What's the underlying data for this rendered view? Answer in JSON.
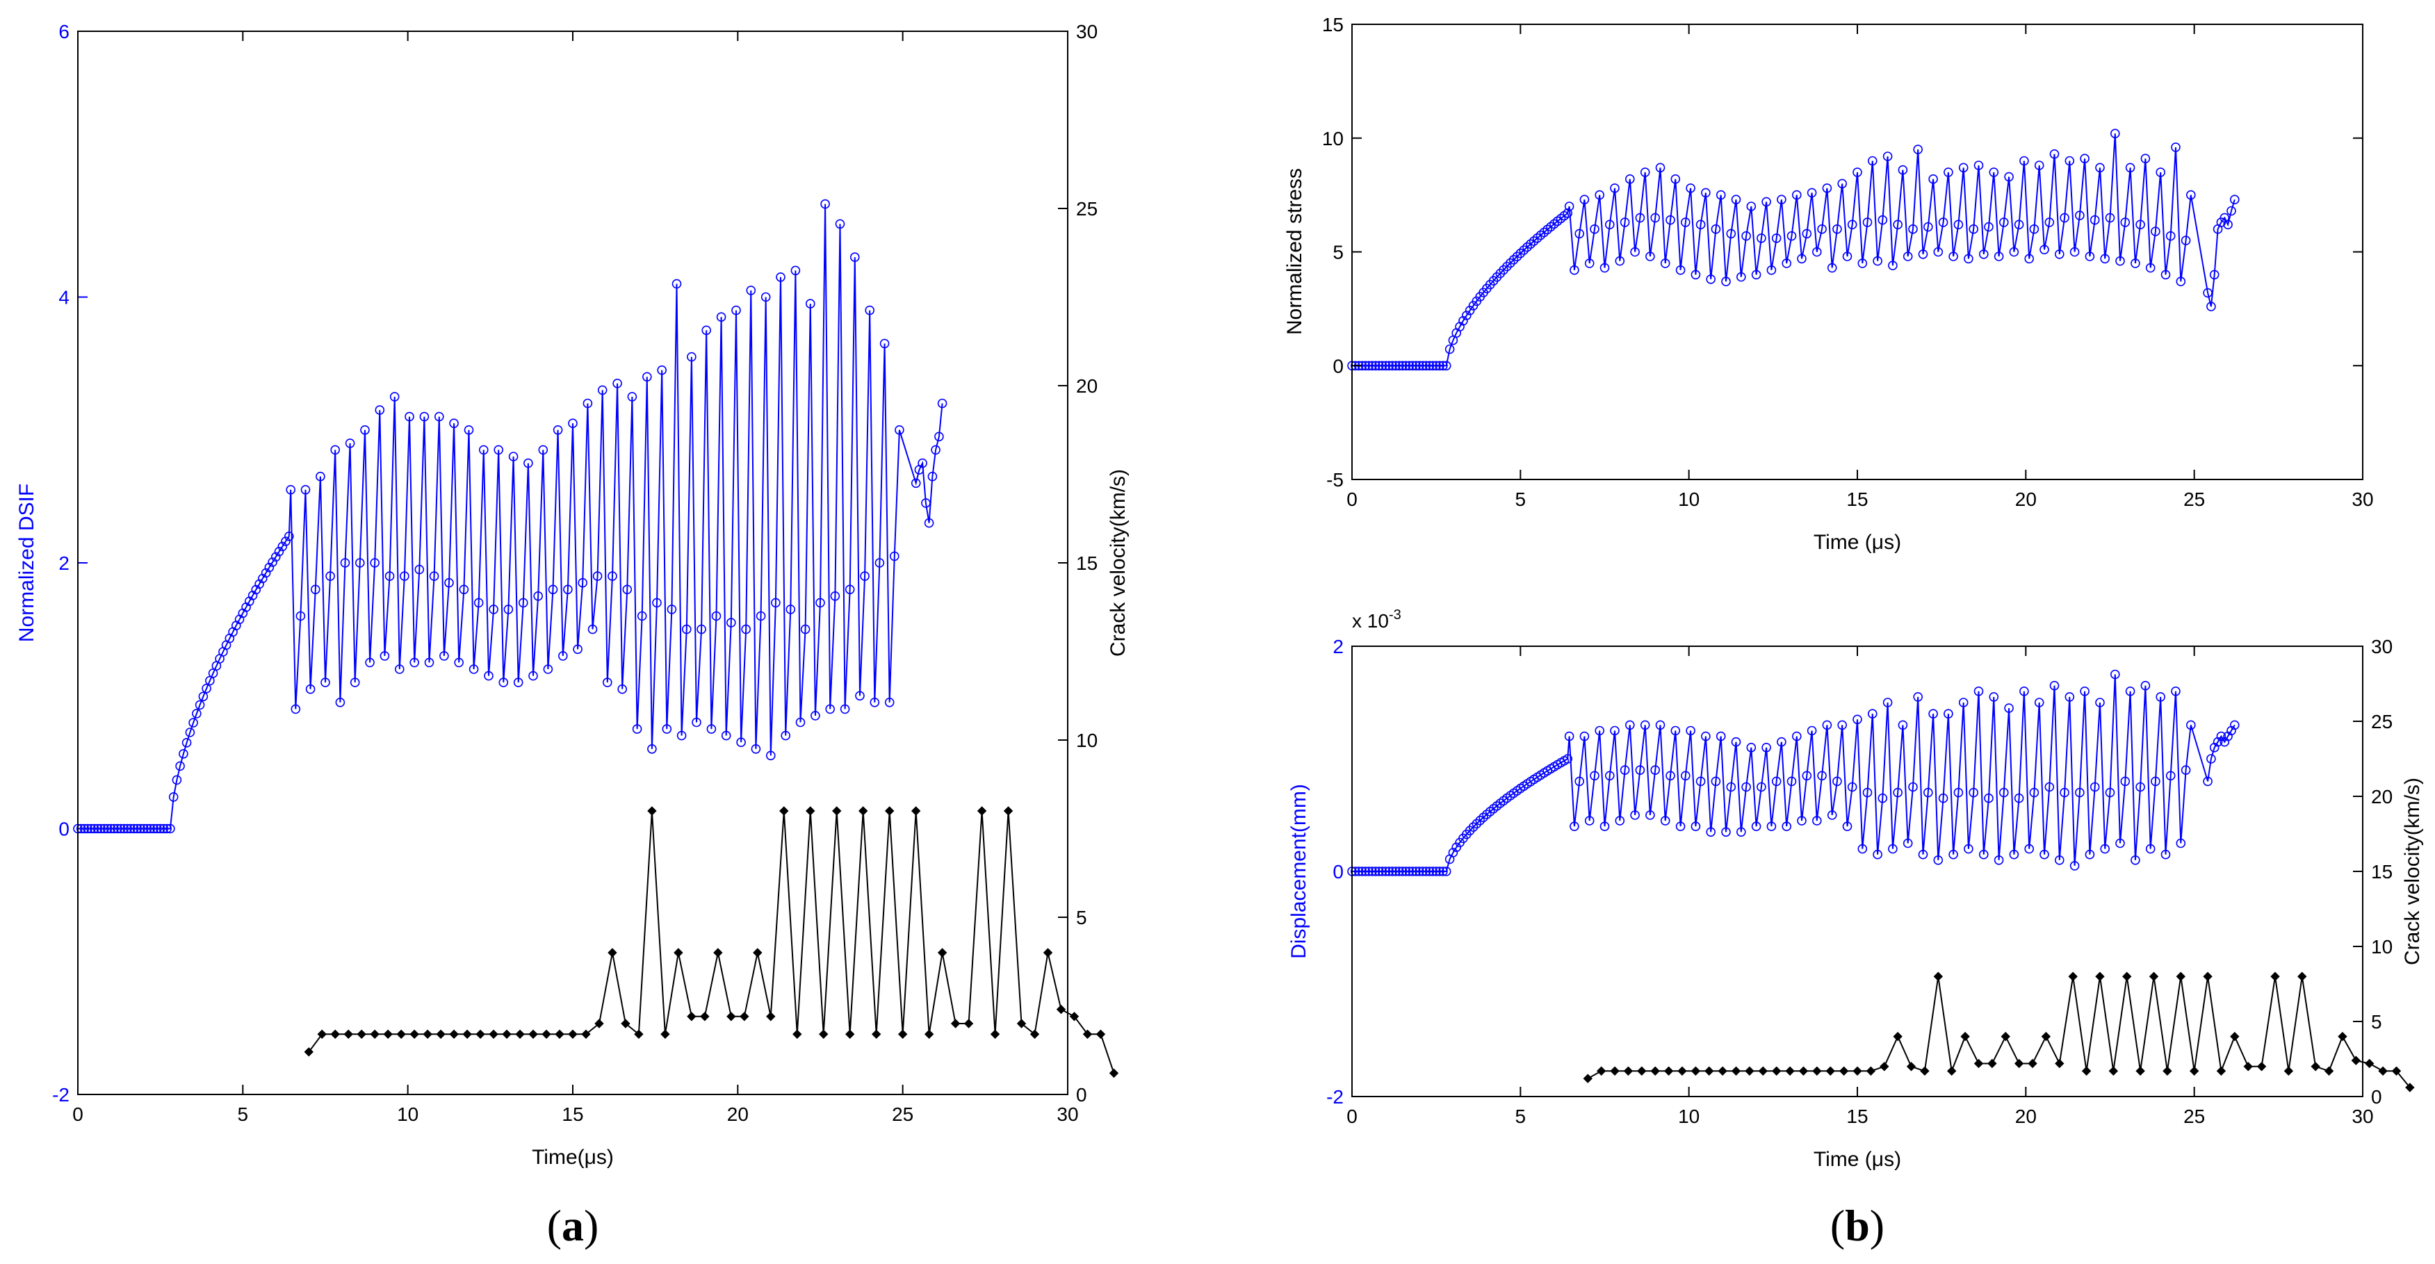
{
  "captions": {
    "a": "a",
    "b": "b"
  },
  "colors": {
    "primary": "#0000ff",
    "secondary": "#000000"
  },
  "chart_data": [
    {
      "id": "a",
      "type": "line",
      "title": "",
      "xlabel": "Time(μs)",
      "ylabel": "Normalized DSIF",
      "y2label": "Crack velocity(km/s)",
      "xlim": [
        0,
        30
      ],
      "ylim": [
        -2,
        6
      ],
      "y2lim": [
        0,
        30
      ],
      "xticks": [
        0,
        5,
        10,
        15,
        20,
        25,
        30
      ],
      "yticks": [
        -2,
        0,
        2,
        4,
        6
      ],
      "y2ticks": [
        0,
        5,
        10,
        15,
        20,
        25,
        30
      ],
      "series": [
        {
          "name": "Normalized DSIF",
          "axis": "left",
          "marker": "circle",
          "ramp": {
            "flat_until": 2.8,
            "t_start": 2.8,
            "t_end": 6.4,
            "y_end": 2.2,
            "step": 0.1
          },
          "highs": [
            2.55,
            2.55,
            2.65,
            2.85,
            2.9,
            3.0,
            3.15,
            3.25,
            3.1,
            3.1,
            3.1,
            3.05,
            3.0,
            2.85,
            2.85,
            2.8,
            2.75,
            2.85,
            3.0,
            3.05,
            3.2,
            3.3,
            3.35,
            3.25,
            3.4,
            3.45,
            4.1,
            3.55,
            3.75,
            3.85,
            3.9,
            4.05,
            4.0,
            4.15,
            4.2,
            3.95,
            4.7,
            4.55,
            4.3,
            3.9,
            3.65,
            3.0
          ],
          "lows": [
            0.9,
            1.05,
            1.1,
            0.95,
            1.1,
            1.25,
            1.3,
            1.2,
            1.25,
            1.25,
            1.3,
            1.25,
            1.2,
            1.15,
            1.1,
            1.1,
            1.15,
            1.2,
            1.3,
            1.35,
            1.5,
            1.1,
            1.05,
            0.75,
            0.6,
            0.75,
            0.7,
            0.8,
            0.75,
            0.7,
            0.65,
            0.6,
            0.55,
            0.7,
            0.8,
            0.85,
            0.9,
            0.9,
            1.0,
            0.95,
            0.95
          ],
          "mids": [
            1.6,
            1.8,
            1.9,
            2.0,
            2.0,
            2.0,
            1.9,
            1.9,
            1.95,
            1.9,
            1.85,
            1.8,
            1.7,
            1.65,
            1.65,
            1.7,
            1.75,
            1.8,
            1.8,
            1.85,
            1.9,
            1.9,
            1.8,
            1.6,
            1.7,
            1.65,
            1.5,
            1.5,
            1.6,
            1.55,
            1.5,
            1.6,
            1.7,
            1.65,
            1.5,
            1.7,
            1.75,
            1.8,
            1.9,
            2.0,
            2.05
          ],
          "tail": [
            [
              25.4,
              2.6
            ],
            [
              25.5,
              2.7
            ],
            [
              25.6,
              2.75
            ],
            [
              25.7,
              2.45
            ],
            [
              25.8,
              2.3
            ],
            [
              25.9,
              2.65
            ],
            [
              26.0,
              2.85
            ],
            [
              26.1,
              2.95
            ],
            [
              26.2,
              3.2
            ]
          ]
        },
        {
          "name": "Crack velocity",
          "axis": "right",
          "marker": "diamond",
          "x_start": 7.0,
          "x_step": 0.4,
          "values": [
            1.2,
            1.7,
            1.7,
            1.7,
            1.7,
            1.7,
            1.7,
            1.7,
            1.7,
            1.7,
            1.7,
            1.7,
            1.7,
            1.7,
            1.7,
            1.7,
            1.7,
            1.7,
            1.7,
            1.7,
            1.7,
            1.7,
            2.0,
            4.0,
            2.0,
            1.7,
            8.0,
            1.7,
            4.0,
            2.2,
            2.2,
            4.0,
            2.2,
            2.2,
            4.0,
            2.2,
            8.0,
            1.7,
            8.0,
            1.7,
            8.0,
            1.7,
            8.0,
            1.7,
            8.0,
            1.7,
            8.0,
            1.7,
            4.0,
            2.0,
            2.0,
            8.0,
            1.7,
            8.0,
            2.0,
            1.7,
            4.0,
            2.4,
            2.2,
            1.7,
            1.7,
            0.6
          ]
        }
      ]
    },
    {
      "id": "b1",
      "type": "line",
      "title": "",
      "xlabel": "Time (μs)",
      "ylabel": "Normalized stress",
      "xlim": [
        0,
        30
      ],
      "ylim": [
        -5,
        15
      ],
      "xticks": [
        0,
        5,
        10,
        15,
        20,
        25,
        30
      ],
      "yticks": [
        -5,
        0,
        5,
        10,
        15
      ],
      "series": [
        {
          "name": "Normalized stress",
          "axis": "left",
          "marker": "circle",
          "ramp": {
            "flat_until": 2.8,
            "t_start": 2.8,
            "t_end": 6.4,
            "y_end": 6.7,
            "step": 0.1
          },
          "highs": [
            7.0,
            7.3,
            7.5,
            7.8,
            8.2,
            8.5,
            8.7,
            8.2,
            7.8,
            7.6,
            7.5,
            7.3,
            7.0,
            7.2,
            7.3,
            7.5,
            7.6,
            7.8,
            8.0,
            8.5,
            9.0,
            9.2,
            8.6,
            9.5,
            8.2,
            8.5,
            8.7,
            8.8,
            8.5,
            8.3,
            9.0,
            8.8,
            9.3,
            9.0,
            9.1,
            8.7,
            10.2,
            8.7,
            9.1,
            8.5,
            9.6,
            7.5
          ],
          "lows": [
            4.2,
            4.5,
            4.3,
            4.6,
            5.0,
            4.8,
            4.5,
            4.2,
            4.0,
            3.8,
            3.7,
            3.9,
            4.0,
            4.2,
            4.5,
            4.7,
            5.0,
            4.3,
            4.8,
            4.5,
            4.6,
            4.4,
            4.8,
            4.9,
            5.0,
            4.8,
            4.7,
            4.9,
            4.8,
            5.0,
            4.7,
            5.1,
            4.9,
            5.0,
            4.8,
            4.7,
            4.6,
            4.5,
            4.3,
            4.0,
            3.7
          ],
          "mids": [
            5.8,
            6.0,
            6.2,
            6.3,
            6.5,
            6.5,
            6.4,
            6.3,
            6.2,
            6.0,
            5.8,
            5.7,
            5.6,
            5.6,
            5.7,
            5.8,
            6.0,
            6.0,
            6.2,
            6.3,
            6.4,
            6.2,
            6.0,
            6.1,
            6.3,
            6.2,
            6.0,
            6.1,
            6.3,
            6.2,
            6.0,
            6.3,
            6.5,
            6.6,
            6.4,
            6.5,
            6.3,
            6.2,
            5.9,
            5.7,
            5.5
          ],
          "tail": [
            [
              25.4,
              3.2
            ],
            [
              25.5,
              2.6
            ],
            [
              25.6,
              4.0
            ],
            [
              25.7,
              6.0
            ],
            [
              25.8,
              6.3
            ],
            [
              25.9,
              6.5
            ],
            [
              26.0,
              6.2
            ],
            [
              26.1,
              6.8
            ],
            [
              26.2,
              7.3
            ]
          ]
        }
      ]
    },
    {
      "id": "b2",
      "type": "line",
      "title": "",
      "xlabel": "Time (μs)",
      "ylabel": "Displacement(mm)",
      "y2label": "Crack velocity(km/s)",
      "exponent_label": "x 10",
      "exponent_power": "-3",
      "xlim": [
        0,
        30
      ],
      "ylim": [
        -2,
        2
      ],
      "y2lim": [
        0,
        30
      ],
      "xticks": [
        0,
        5,
        10,
        15,
        20,
        25,
        30
      ],
      "yticks": [
        -2,
        0,
        2
      ],
      "y2ticks": [
        0,
        5,
        10,
        15,
        20,
        25,
        30
      ],
      "series": [
        {
          "name": "Displacement",
          "axis": "left",
          "marker": "circle",
          "ramp": {
            "flat_until": 2.8,
            "t_start": 2.8,
            "t_end": 6.4,
            "y_end": 1.0,
            "step": 0.1
          },
          "highs": [
            1.2,
            1.2,
            1.25,
            1.25,
            1.3,
            1.3,
            1.3,
            1.25,
            1.25,
            1.2,
            1.2,
            1.15,
            1.1,
            1.1,
            1.15,
            1.2,
            1.25,
            1.3,
            1.3,
            1.35,
            1.4,
            1.5,
            1.3,
            1.55,
            1.4,
            1.4,
            1.5,
            1.6,
            1.55,
            1.45,
            1.6,
            1.5,
            1.65,
            1.55,
            1.6,
            1.5,
            1.75,
            1.6,
            1.65,
            1.55,
            1.6,
            1.3
          ],
          "lows": [
            0.4,
            0.45,
            0.4,
            0.45,
            0.5,
            0.5,
            0.45,
            0.4,
            0.4,
            0.35,
            0.35,
            0.35,
            0.4,
            0.4,
            0.4,
            0.45,
            0.45,
            0.5,
            0.4,
            0.2,
            0.15,
            0.2,
            0.25,
            0.15,
            0.1,
            0.15,
            0.2,
            0.15,
            0.1,
            0.15,
            0.2,
            0.15,
            0.1,
            0.05,
            0.15,
            0.2,
            0.25,
            0.1,
            0.2,
            0.15,
            0.25
          ],
          "mids": [
            0.8,
            0.85,
            0.85,
            0.9,
            0.9,
            0.9,
            0.85,
            0.85,
            0.8,
            0.8,
            0.75,
            0.75,
            0.75,
            0.8,
            0.8,
            0.85,
            0.85,
            0.8,
            0.75,
            0.7,
            0.65,
            0.7,
            0.75,
            0.7,
            0.65,
            0.7,
            0.7,
            0.65,
            0.7,
            0.65,
            0.7,
            0.75,
            0.7,
            0.7,
            0.75,
            0.7,
            0.8,
            0.75,
            0.8,
            0.85,
            0.9
          ],
          "tail": [
            [
              25.4,
              0.8
            ],
            [
              25.5,
              1.0
            ],
            [
              25.6,
              1.1
            ],
            [
              25.7,
              1.15
            ],
            [
              25.8,
              1.2
            ],
            [
              25.9,
              1.15
            ],
            [
              26.0,
              1.2
            ],
            [
              26.1,
              1.25
            ],
            [
              26.2,
              1.3
            ]
          ]
        },
        {
          "name": "Crack velocity",
          "axis": "right",
          "marker": "diamond",
          "x_start": 7.0,
          "x_step": 0.4,
          "values": [
            1.2,
            1.7,
            1.7,
            1.7,
            1.7,
            1.7,
            1.7,
            1.7,
            1.7,
            1.7,
            1.7,
            1.7,
            1.7,
            1.7,
            1.7,
            1.7,
            1.7,
            1.7,
            1.7,
            1.7,
            1.7,
            1.7,
            2.0,
            4.0,
            2.0,
            1.7,
            8.0,
            1.7,
            4.0,
            2.2,
            2.2,
            4.0,
            2.2,
            2.2,
            4.0,
            2.2,
            8.0,
            1.7,
            8.0,
            1.7,
            8.0,
            1.7,
            8.0,
            1.7,
            8.0,
            1.7,
            8.0,
            1.7,
            4.0,
            2.0,
            2.0,
            8.0,
            1.7,
            8.0,
            2.0,
            1.7,
            4.0,
            2.4,
            2.2,
            1.7,
            1.7,
            0.6
          ]
        }
      ]
    }
  ]
}
